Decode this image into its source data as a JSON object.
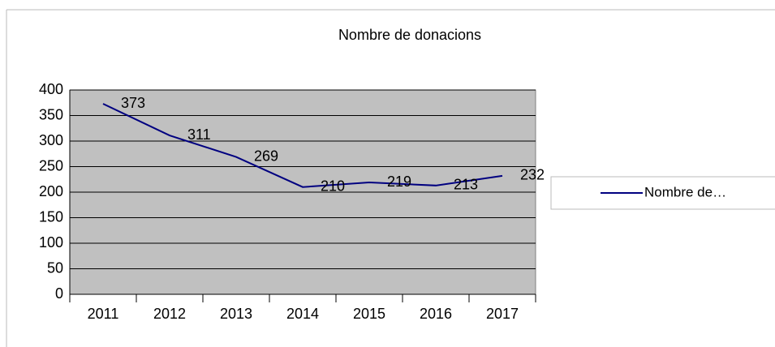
{
  "chart_data": {
    "type": "line",
    "title": "Nombre de donacions",
    "categories": [
      "2011",
      "2012",
      "2013",
      "2014",
      "2015",
      "2016",
      "2017"
    ],
    "series": [
      {
        "name": "Nombre de…",
        "color": "#000080",
        "values": [
          373,
          311,
          269,
          210,
          219,
          213,
          232
        ]
      }
    ],
    "ylim": [
      0,
      400
    ],
    "yticks": [
      0,
      50,
      100,
      150,
      200,
      250,
      300,
      350,
      400
    ],
    "grid": true,
    "legend": "right",
    "plot_background": "#c0c0c0"
  }
}
